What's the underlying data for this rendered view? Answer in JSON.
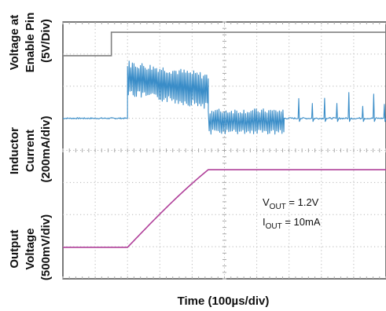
{
  "chart_data": {
    "type": "line",
    "title": "",
    "xlabel": "Time (100µs/div)",
    "x_unit_per_div": "100us",
    "x_divisions": 10,
    "y_divisions": 8,
    "grid": true,
    "channels": [
      {
        "name": "Voltage at Enable Pin",
        "scale_label": "(5V/Div)",
        "color": "#808080",
        "points_div": [
          [
            0,
            6.95
          ],
          [
            1.5,
            6.95
          ],
          [
            1.5,
            7.68
          ],
          [
            10,
            7.68
          ]
        ]
      },
      {
        "name": "Inductor Current",
        "scale_label": "(200mA/div)",
        "color": "#3a8dc8",
        "baseline_div": 5.0,
        "events": [
          {
            "t_start_div": 2.0,
            "t_end_div": 4.5,
            "kind": "ripple",
            "center_start_div": 6.25,
            "center_end_div": 5.85,
            "amplitude_div": 0.45
          },
          {
            "t_start_div": 4.5,
            "t_end_div": 6.85,
            "kind": "ripple",
            "center_start_div": 4.9,
            "center_end_div": 4.9,
            "amplitude_div": 0.32
          },
          {
            "t_start_div": 6.85,
            "t_end_div": 10,
            "kind": "pulses",
            "pulse_times_div": [
              7.3,
              7.72,
              8.1,
              8.48,
              8.85,
              9.28,
              9.62,
              9.95
            ],
            "pulse_height_div": 0.75
          }
        ]
      },
      {
        "name": "Output Voltage",
        "scale_label": "(500mV/div)",
        "color": "#b0409a",
        "points_div": [
          [
            0,
            0.98
          ],
          [
            2.0,
            0.98
          ],
          [
            4.5,
            3.4
          ],
          [
            10,
            3.4
          ]
        ]
      }
    ],
    "annotations": [
      {
        "name": "V",
        "sub": "OUT",
        "value": " = 1.2V"
      },
      {
        "name": "I",
        "sub": "OUT",
        "value": " = 10mA"
      }
    ],
    "ylabels": [
      {
        "lines": [
          "Voltage at",
          "Enable Pin",
          "(5V/Div)"
        ]
      },
      {
        "lines": [
          "Inductor",
          "Current",
          "(200mA/div)"
        ]
      },
      {
        "lines": [
          "Output",
          "Voltage",
          "(500mV/div)"
        ]
      }
    ]
  }
}
